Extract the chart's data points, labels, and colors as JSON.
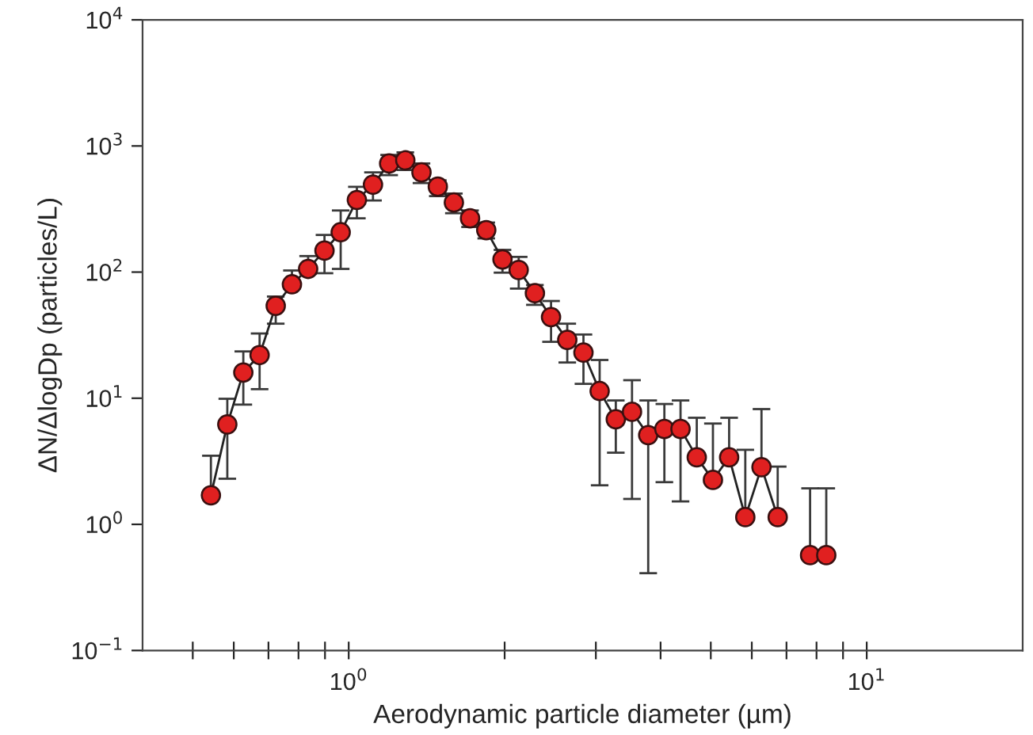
{
  "chart_data": {
    "type": "line",
    "xlabel": "Aerodynamic particle diameter (µm)",
    "ylabel": "ΔN/ΔlogDp (particles/L)",
    "log": "xy",
    "xlim": [
      0.4,
      20
    ],
    "ylim": [
      0.1,
      10000
    ],
    "xticks": [
      {
        "value": 0.5,
        "label": null
      },
      {
        "value": 0.6,
        "label": null
      },
      {
        "value": 0.7,
        "label": null
      },
      {
        "value": 0.8,
        "label": null
      },
      {
        "value": 0.9,
        "label": null
      },
      {
        "value": 1,
        "label": "10$^{0}$"
      },
      {
        "value": 2,
        "label": null
      },
      {
        "value": 3,
        "label": null
      },
      {
        "value": 4,
        "label": null
      },
      {
        "value": 5,
        "label": null
      },
      {
        "value": 6,
        "label": null
      },
      {
        "value": 7,
        "label": null
      },
      {
        "value": 8,
        "label": null
      },
      {
        "value": 9,
        "label": null
      },
      {
        "value": 10,
        "label": "10$^{1}$"
      }
    ],
    "yticks": [
      {
        "value": 0.1,
        "label": "10$^{−1}$"
      },
      {
        "value": 1,
        "label": "10$^{0}$"
      },
      {
        "value": 10,
        "label": "10$^{1}$"
      },
      {
        "value": 100,
        "label": "10$^{2}$"
      },
      {
        "value": 1000,
        "label": "10$^{3}$"
      },
      {
        "value": 10000,
        "label": "10$^{4}$"
      }
    ],
    "marker": "circle",
    "line_style": "solid",
    "grid": false,
    "series": [
      {
        "color": "#e02020",
        "x": [
          0.542,
          0.583,
          0.626,
          0.673,
          0.723,
          0.777,
          0.835,
          0.898,
          0.965,
          1.037,
          1.114,
          1.197,
          1.286,
          1.382,
          1.486,
          1.596,
          1.715,
          1.843,
          1.981,
          2.129,
          2.288,
          2.458,
          2.642,
          2.839,
          3.051,
          3.278,
          3.523,
          3.786,
          4.068,
          4.371,
          4.698,
          5.048,
          5.425,
          5.829,
          6.264,
          6.732,
          7.234,
          7.774,
          8.354
        ],
        "values": [
          1.7,
          6.2,
          16,
          22,
          54,
          80,
          106,
          148,
          207,
          373,
          494,
          726,
          769,
          617,
          476,
          356,
          267,
          215,
          126,
          104,
          68,
          44,
          29,
          23,
          11.4,
          6.8,
          7.8,
          5.1,
          5.7,
          5.7,
          3.4,
          2.25,
          3.4,
          1.14,
          2.84,
          1.14,
          null,
          0.57,
          0.57
        ],
        "errors": [
          [
            1.7,
            3.5
          ],
          [
            2.3,
            9.9
          ],
          [
            8.9,
            23.5
          ],
          [
            11.8,
            32.6
          ],
          [
            39,
            64
          ],
          [
            74,
            103
          ],
          [
            97,
            134
          ],
          [
            98,
            197
          ],
          [
            106,
            308
          ],
          [
            267,
            475
          ],
          [
            370,
            617
          ],
          [
            587,
            848
          ],
          [
            646,
            889
          ],
          [
            508,
            726
          ],
          [
            400,
            534
          ],
          [
            293,
            419
          ],
          [
            228,
            308
          ],
          [
            185,
            247
          ],
          [
            99,
            150
          ],
          [
            74,
            132
          ],
          [
            55,
            79
          ],
          [
            28,
            59
          ],
          [
            19.2,
            39
          ],
          [
            13,
            32
          ],
          [
            2.04,
            20.1
          ],
          [
            3.7,
            9.6
          ],
          [
            1.59,
            13.9
          ],
          [
            0.41,
            9.6
          ],
          [
            2.16,
            9.0
          ],
          [
            1.52,
            9.6
          ],
          [
            3.4,
            7.0
          ],
          [
            2.25,
            6.3
          ],
          [
            3.4,
            7.0
          ],
          [
            1.14,
            3.9
          ],
          [
            2.84,
            8.2
          ],
          [
            1.14,
            2.87
          ],
          null,
          [
            0.57,
            1.93
          ],
          [
            0.57,
            1.93
          ]
        ]
      }
    ]
  }
}
